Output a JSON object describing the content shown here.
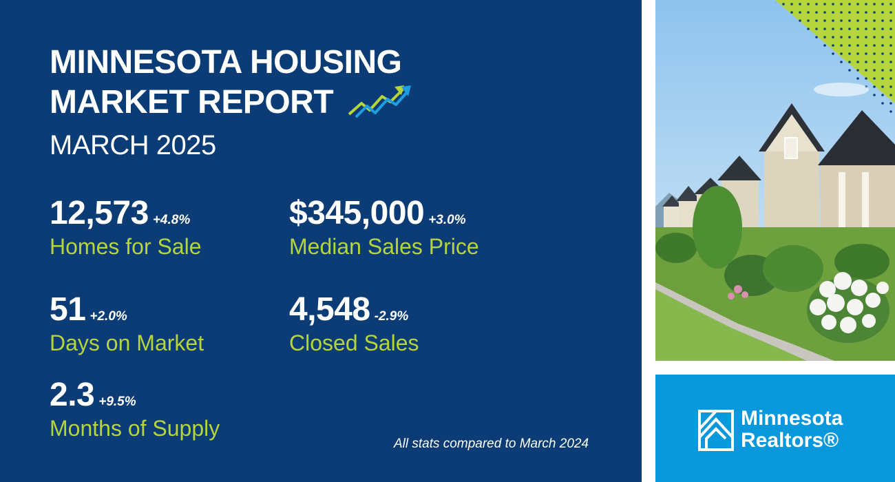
{
  "report": {
    "title_line1": "MINNESOTA HOUSING",
    "title_line2": "MARKET REPORT",
    "subtitle": "MARCH 2025",
    "trend_icon": "trending-up-arrows-icon"
  },
  "stats": [
    {
      "value": "12,573",
      "change": "+4.8%",
      "label": "Homes for Sale"
    },
    {
      "value": "$345,000",
      "change": "+3.0%",
      "label": "Median Sales Price"
    },
    {
      "value": "51",
      "change": "+2.0%",
      "label": "Days on Market"
    },
    {
      "value": "4,548",
      "change": "-2.9%",
      "label": "Closed Sales"
    },
    {
      "value": "2.3",
      "change": "+9.5%",
      "label": "Months of Supply"
    }
  ],
  "footnote": "All stats compared to March 2024",
  "brand": {
    "line1": "Minnesota",
    "line2": "Realtors®",
    "logo_icon": "house-roof-logo-icon"
  },
  "colors": {
    "panel_background": "#0b3c75",
    "accent_green": "#b6d53c",
    "brand_blue": "#0a98dc",
    "text_white": "#ffffff"
  }
}
